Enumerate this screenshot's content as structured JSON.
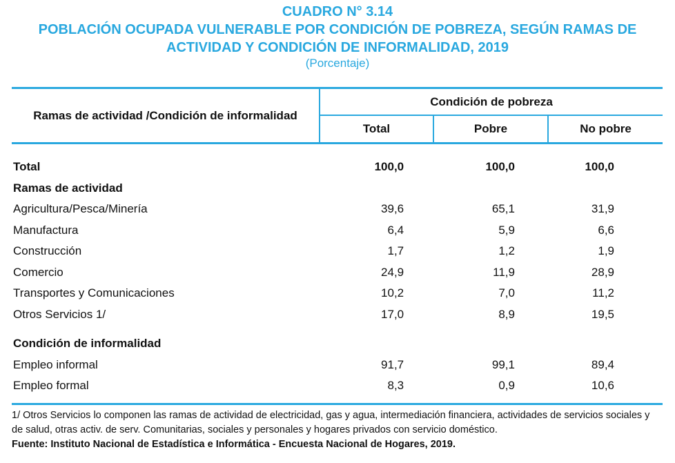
{
  "header": {
    "cuadro": "CUADRO N° 3.14",
    "title_line1": "POBLACIÓN OCUPADA VULNERABLE POR CONDICIÓN DE POBREZA, SEGÚN RAMAS DE",
    "title_line2": "ACTIVIDAD Y CONDICIÓN DE INFORMALIDAD, 2019",
    "unit": "(Porcentaje)"
  },
  "table": {
    "row_header": "Ramas de actividad /Condición de informalidad",
    "group_header": "Condición de pobreza",
    "columns": [
      "Total",
      "Pobre",
      "No pobre"
    ],
    "total": {
      "label": "Total",
      "values": [
        "100,0",
        "100,0",
        "100,0"
      ]
    },
    "section1": {
      "label": "Ramas de actividad",
      "rows": [
        {
          "label": "Agricultura/Pesca/Minería",
          "values": [
            "39,6",
            "65,1",
            "31,9"
          ]
        },
        {
          "label": "Manufactura",
          "values": [
            "6,4",
            "5,9",
            "6,6"
          ]
        },
        {
          "label": "Construcción",
          "values": [
            "1,7",
            "1,2",
            "1,9"
          ]
        },
        {
          "label": "Comercio",
          "values": [
            "24,9",
            "11,9",
            "28,9"
          ]
        },
        {
          "label": "Transportes y Comunicaciones",
          "values": [
            "10,2",
            "7,0",
            "11,2"
          ]
        },
        {
          "label": "Otros Servicios 1/",
          "values": [
            "17,0",
            "8,9",
            "19,5"
          ]
        }
      ]
    },
    "section2": {
      "label": "Condición de informalidad",
      "rows": [
        {
          "label": "Empleo informal",
          "values": [
            "91,7",
            "99,1",
            "89,4"
          ]
        },
        {
          "label": "Empleo formal",
          "values": [
            "8,3",
            "0,9",
            "10,6"
          ]
        }
      ]
    }
  },
  "notes": {
    "footnote": "1/ Otros Servicios lo componen las ramas de actividad de electricidad, gas y agua, intermediación financiera, actividades de servicios sociales y de salud, otras activ. de serv. Comunitarias, sociales y personales y hogares privados con servicio doméstico.",
    "source": "Fuente: Instituto Nacional de Estadística e Informática  - Encuesta Nacional de Hogares, 2019."
  },
  "colors": {
    "accent": "#29a8df"
  }
}
